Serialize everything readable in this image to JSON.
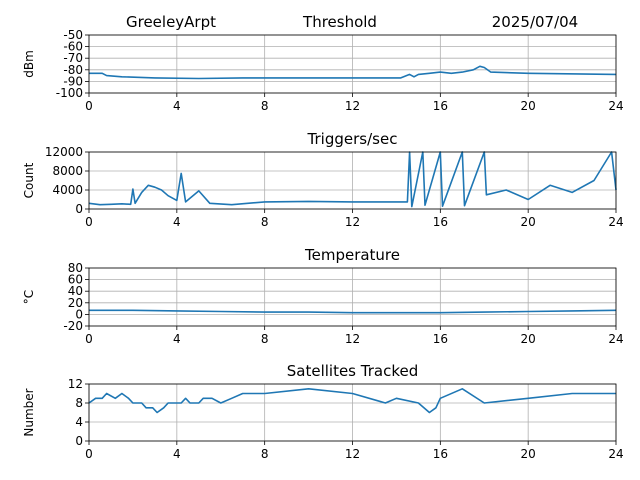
{
  "header": {
    "station": "GreeleyArpt",
    "title": "Threshold",
    "date": "2025/07/04"
  },
  "chart_data": [
    {
      "type": "line",
      "title": "Threshold",
      "xlabel": "",
      "ylabel": "dBm",
      "xlim": [
        0,
        24
      ],
      "ylim": [
        -100,
        -50
      ],
      "xticks": [
        0,
        4,
        8,
        12,
        16,
        20,
        24
      ],
      "yticks": [
        -100,
        -90,
        -80,
        -70,
        -60,
        -50
      ],
      "grid": true,
      "series": [
        {
          "values": [
            [
              0,
              -83
            ],
            [
              0.6,
              -83
            ],
            [
              0.8,
              -85
            ],
            [
              1.5,
              -86
            ],
            [
              3,
              -87
            ],
            [
              5,
              -87.5
            ],
            [
              7,
              -87
            ],
            [
              9,
              -87
            ],
            [
              12,
              -87
            ],
            [
              14.2,
              -87
            ],
            [
              14.6,
              -84
            ],
            [
              14.8,
              -86
            ],
            [
              15,
              -84
            ],
            [
              15.5,
              -83
            ],
            [
              16,
              -82
            ],
            [
              16.5,
              -83
            ],
            [
              17,
              -82
            ],
            [
              17.5,
              -80
            ],
            [
              17.8,
              -77
            ],
            [
              18,
              -78
            ],
            [
              18.3,
              -82
            ],
            [
              20,
              -83
            ],
            [
              24,
              -84
            ]
          ]
        }
      ]
    },
    {
      "type": "line",
      "title": "Triggers/sec",
      "xlabel": "",
      "ylabel": "Count",
      "xlim": [
        0,
        24
      ],
      "ylim": [
        0,
        12000
      ],
      "xticks": [
        0,
        4,
        8,
        12,
        16,
        20,
        24
      ],
      "yticks": [
        0,
        4000,
        8000,
        12000
      ],
      "grid": true,
      "series": [
        {
          "values": [
            [
              0,
              1200
            ],
            [
              0.5,
              900
            ],
            [
              1,
              1000
            ],
            [
              1.5,
              1100
            ],
            [
              1.9,
              1000
            ],
            [
              2.0,
              4200
            ],
            [
              2.1,
              1200
            ],
            [
              2.4,
              3500
            ],
            [
              2.7,
              5000
            ],
            [
              3.0,
              4600
            ],
            [
              3.3,
              4000
            ],
            [
              3.6,
              2800
            ],
            [
              4.0,
              1800
            ],
            [
              4.2,
              7500
            ],
            [
              4.4,
              1500
            ],
            [
              5.0,
              3800
            ],
            [
              5.5,
              1200
            ],
            [
              6.5,
              900
            ],
            [
              8,
              1500
            ],
            [
              10,
              1600
            ],
            [
              12,
              1500
            ],
            [
              14.5,
              1500
            ],
            [
              14.6,
              12000
            ],
            [
              14.7,
              500
            ],
            [
              15.2,
              12000
            ],
            [
              15.3,
              800
            ],
            [
              16.0,
              12000
            ],
            [
              16.1,
              600
            ],
            [
              17.0,
              12000
            ],
            [
              17.1,
              700
            ],
            [
              18.0,
              12000
            ],
            [
              18.1,
              3000
            ],
            [
              19.0,
              4000
            ],
            [
              20.0,
              2000
            ],
            [
              21.0,
              5000
            ],
            [
              22.0,
              3500
            ],
            [
              23.0,
              6000
            ],
            [
              23.8,
              12000
            ],
            [
              24,
              4000
            ]
          ]
        }
      ]
    },
    {
      "type": "line",
      "title": "Temperature",
      "xlabel": "",
      "ylabel": "°C",
      "xlim": [
        0,
        24
      ],
      "ylim": [
        -20,
        80
      ],
      "xticks": [
        0,
        4,
        8,
        12,
        16,
        20,
        24
      ],
      "yticks": [
        -20,
        0,
        20,
        40,
        60,
        80
      ],
      "grid": true,
      "series": [
        {
          "values": [
            [
              0,
              7
            ],
            [
              2,
              7
            ],
            [
              4,
              6
            ],
            [
              6,
              5
            ],
            [
              8,
              4
            ],
            [
              10,
              4
            ],
            [
              12,
              3
            ],
            [
              14,
              3
            ],
            [
              16,
              3
            ],
            [
              18,
              4
            ],
            [
              20,
              5
            ],
            [
              22,
              6
            ],
            [
              24,
              7
            ]
          ]
        }
      ]
    },
    {
      "type": "line",
      "title": "Satellites Tracked",
      "xlabel": "",
      "ylabel": "Number",
      "xlim": [
        0,
        24
      ],
      "ylim": [
        0,
        12
      ],
      "xticks": [
        0,
        4,
        8,
        12,
        16,
        20,
        24
      ],
      "yticks": [
        0,
        4,
        8,
        12
      ],
      "grid": true,
      "series": [
        {
          "values": [
            [
              0,
              8
            ],
            [
              0.3,
              9
            ],
            [
              0.6,
              9
            ],
            [
              0.8,
              10
            ],
            [
              1.2,
              9
            ],
            [
              1.5,
              10
            ],
            [
              1.8,
              9
            ],
            [
              2.0,
              8
            ],
            [
              2.4,
              8
            ],
            [
              2.6,
              7
            ],
            [
              2.9,
              7
            ],
            [
              3.1,
              6
            ],
            [
              3.4,
              7
            ],
            [
              3.6,
              8
            ],
            [
              4.2,
              8
            ],
            [
              4.4,
              9
            ],
            [
              4.6,
              8
            ],
            [
              5.0,
              8
            ],
            [
              5.2,
              9
            ],
            [
              5.6,
              9
            ],
            [
              6.0,
              8
            ],
            [
              6.5,
              9
            ],
            [
              7.0,
              10
            ],
            [
              8,
              10
            ],
            [
              10,
              11
            ],
            [
              12,
              10
            ],
            [
              13.5,
              8
            ],
            [
              14.0,
              9
            ],
            [
              15.0,
              8
            ],
            [
              15.5,
              6
            ],
            [
              15.8,
              7
            ],
            [
              16,
              9
            ],
            [
              17,
              11
            ],
            [
              18,
              8
            ],
            [
              20,
              9
            ],
            [
              22,
              10
            ],
            [
              24,
              10
            ]
          ]
        }
      ]
    }
  ]
}
